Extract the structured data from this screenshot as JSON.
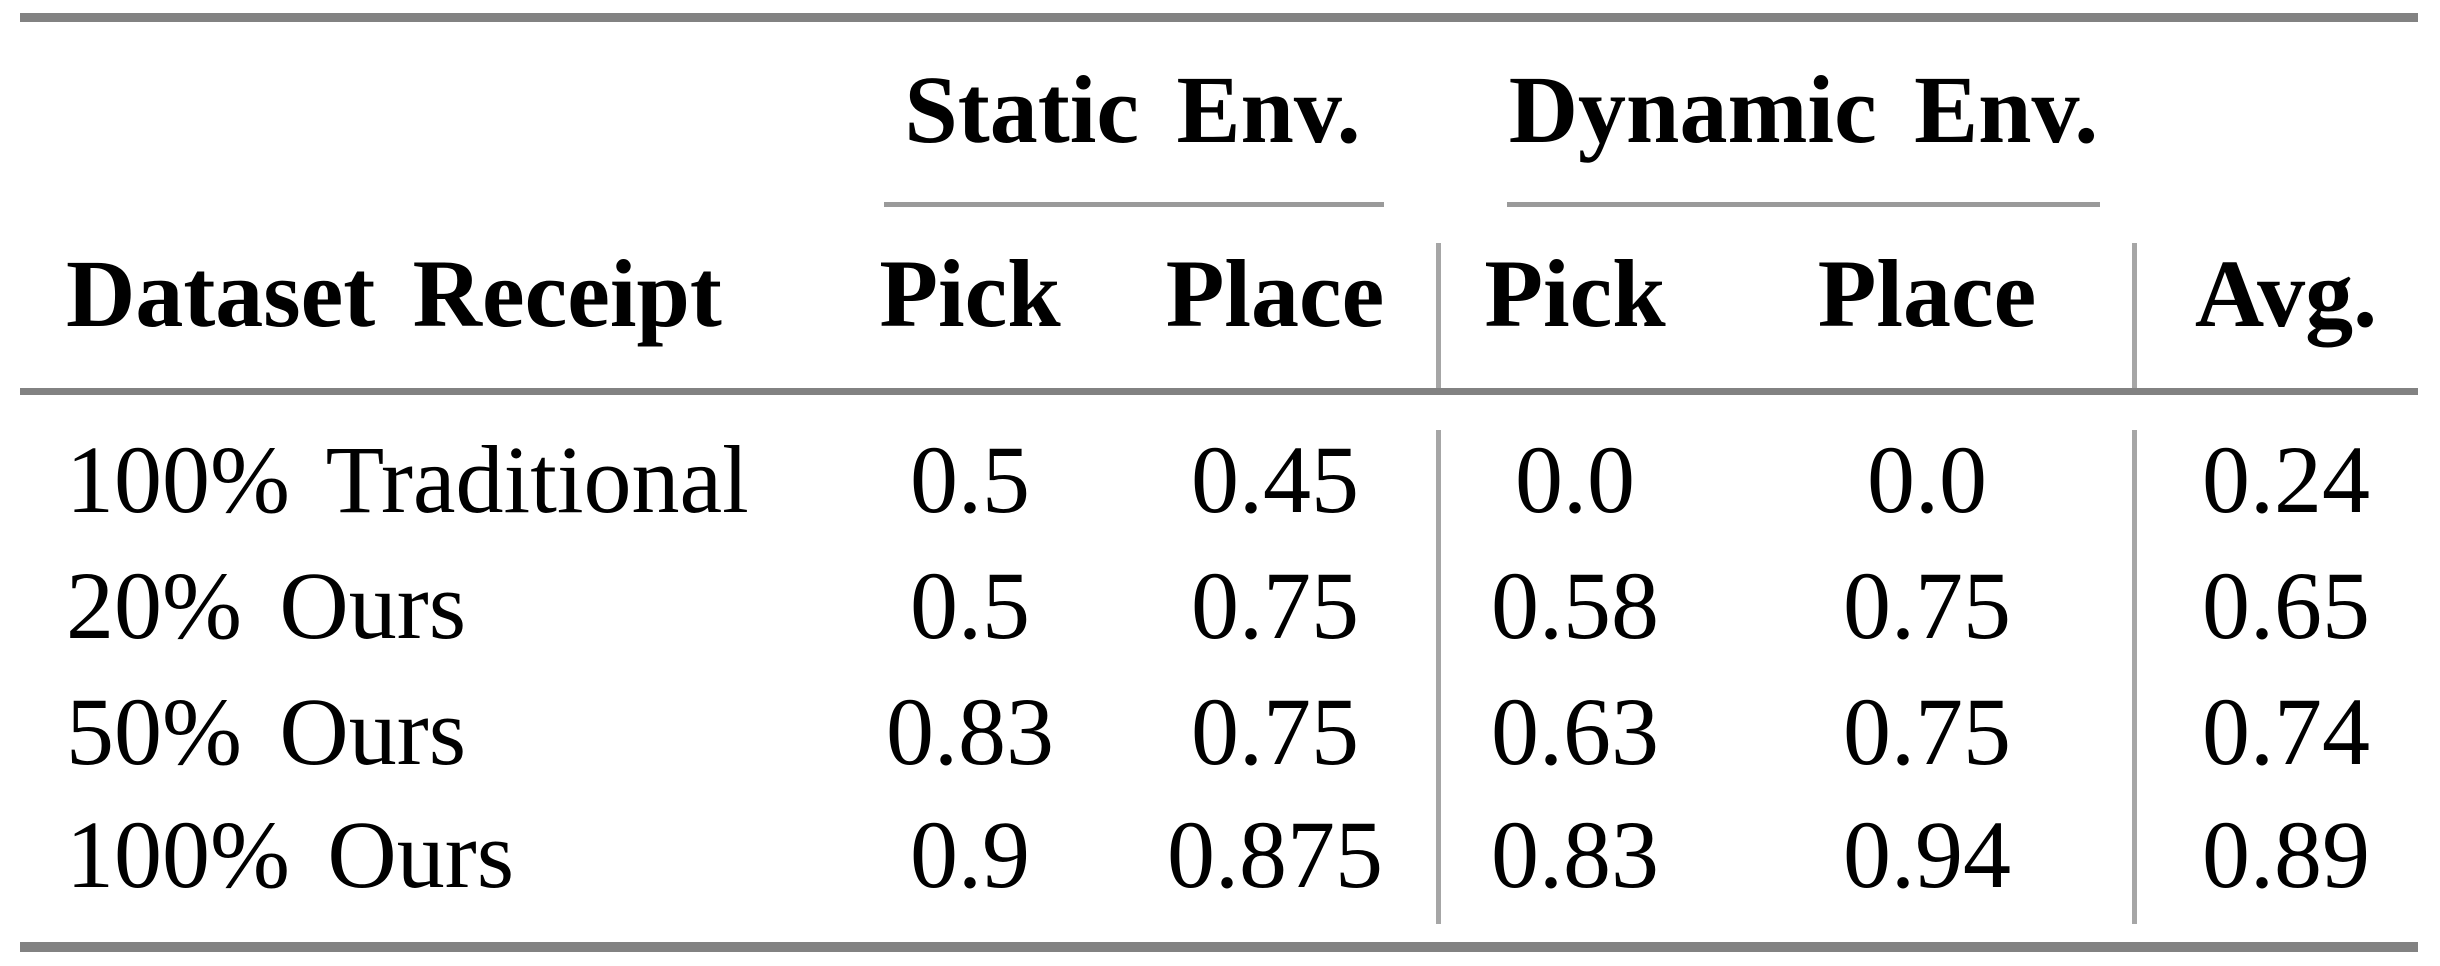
{
  "figure": {
    "type": "results-table",
    "group_headers": [
      {
        "label": "Static Env."
      },
      {
        "label": "Dynamic Env."
      }
    ],
    "columns": {
      "row_header": "Dataset Receipt",
      "static_pick": "Pick",
      "static_place": "Place",
      "dynamic_pick": "Pick",
      "dynamic_place": "Place",
      "avg": "Avg."
    },
    "rows": [
      {
        "label": "100% Traditional",
        "static_pick": "0.5",
        "static_place": "0.45",
        "dynamic_pick": "0.0",
        "dynamic_place": "0.0",
        "avg": "0.24"
      },
      {
        "label": "20% Ours",
        "static_pick": "0.5",
        "static_place": "0.75",
        "dynamic_pick": "0.58",
        "dynamic_place": "0.75",
        "avg": "0.65"
      },
      {
        "label": "50% Ours",
        "static_pick": "0.83",
        "static_place": "0.75",
        "dynamic_pick": "0.63",
        "dynamic_place": "0.75",
        "avg": "0.74"
      },
      {
        "label": "100% Ours",
        "static_pick": "0.9",
        "static_place": "0.875",
        "dynamic_pick": "0.83",
        "dynamic_place": "0.94",
        "avg": "0.89"
      }
    ],
    "colors": {
      "rule_heavy": "#828282",
      "rule_light": "#9a9a9a",
      "rule_vertical": "#a6a6a6",
      "text": "#000000",
      "background": "#ffffff"
    }
  }
}
